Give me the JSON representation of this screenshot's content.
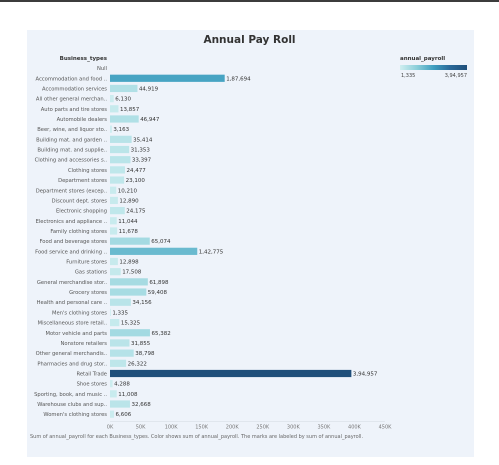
{
  "chart_data": {
    "type": "bar",
    "orientation": "horizontal",
    "title": "Annual Pay Roll",
    "category_header": "Business_types",
    "categories": [
      "Null",
      "Accommodation and food ..",
      "Accommodation services",
      "All other general merchan..",
      "Auto parts and tire stores",
      "Automobile dealers",
      "Beer, wine, and liquor sto..",
      "Building mat. and garden ..",
      "Building mat. and supplie..",
      "Clothing and accessories s..",
      "Clothing stores",
      "Department stores",
      "Department stores (excep..",
      "Discount dept. stores",
      "Electronic shopping",
      "Electronics and appliance ..",
      "Family clothing stores",
      "Food and beverage stores",
      "Food service and drinking ..",
      "Furniture stores",
      "Gas stations",
      "General merchandise stor..",
      "Grocery stores",
      "Health and personal care ..",
      "Men's clothing stores",
      "Miscellaneous store retail..",
      "Motor vehicle and parts",
      "Nonstore retailers",
      "Other general merchandis..",
      "Pharmacies and drug stor..",
      "Retail Trade",
      "Shoe stores",
      "Sporting, book, and music ..",
      "Warehouse clubs and sup..",
      "Women's clothing stores"
    ],
    "values": [
      null,
      187694,
      44919,
      6130,
      13857,
      46947,
      3163,
      35414,
      31353,
      33397,
      24477,
      23100,
      10210,
      12890,
      24175,
      11044,
      11678,
      65074,
      142775,
      12898,
      17508,
      61898,
      59408,
      34156,
      1335,
      15325,
      65382,
      31855,
      38798,
      26322,
      394957,
      4288,
      11008,
      32668,
      6606
    ],
    "data_labels": [
      "",
      "1,87,694",
      "44,919",
      "6,130",
      "13,857",
      "46,947",
      "3,163",
      "35,414",
      "31,353",
      "33,397",
      "24,477",
      "23,100",
      "10,210",
      "12,890",
      "24,175",
      "11,044",
      "11,678",
      "65,074",
      "1,42,775",
      "12,898",
      "17,508",
      "61,898",
      "59,408",
      "34,156",
      "1,335",
      "15,325",
      "65,382",
      "31,855",
      "38,798",
      "26,322",
      "3,94,957",
      "4,288",
      "11,008",
      "32,668",
      "6,606"
    ],
    "x_ticks": [
      "0K",
      "50K",
      "100K",
      "150K",
      "200K",
      "250K",
      "300K",
      "350K",
      "400K",
      "450K"
    ],
    "xlim": [
      0,
      450000
    ],
    "grid": false,
    "color_scale": {
      "field": "annual_payroll",
      "min_label": "1,335",
      "max_label": "3,94,957",
      "min": 1335,
      "max": 394957,
      "colors": [
        "#cfeef0",
        "#8ccfda",
        "#3f9fc0",
        "#2a6898",
        "#1f4f7a"
      ]
    },
    "legend_position": "top-right"
  },
  "legend": {
    "title": "annual_payroll",
    "min": "1,335",
    "max": "3,94,957"
  },
  "caption": "Sum of annual_payroll for each Business_types.  Color shows sum of annual_payroll.  The marks are labeled by sum of annual_payroll."
}
